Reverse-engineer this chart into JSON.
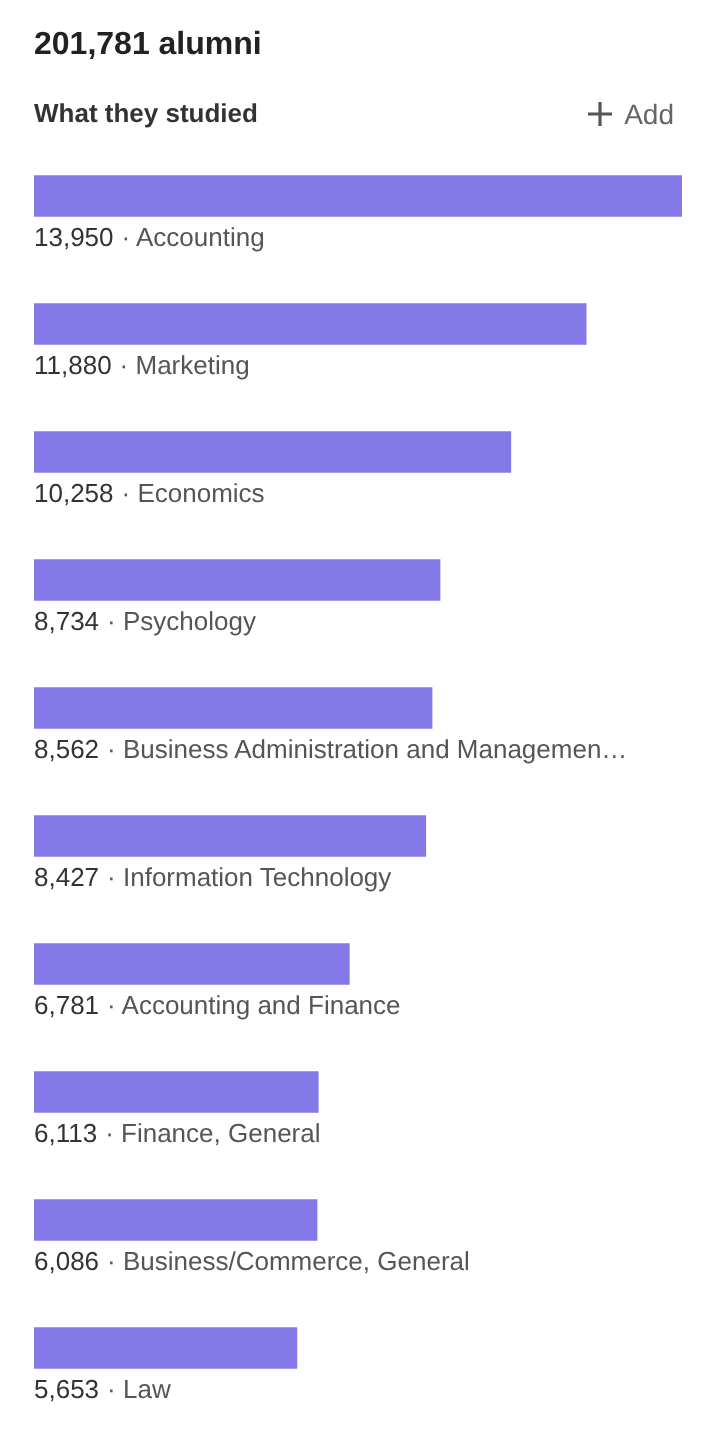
{
  "chart_data": {
    "type": "bar",
    "orientation": "horizontal",
    "title": "201,781 alumni",
    "subtitle": "What they studied",
    "categories": [
      "· Accounting",
      "· Marketing",
      "· Economics",
      "· Psychology",
      "· Business Administration and Managemen…",
      "· Information Technology",
      "· Accounting and Finance",
      "· Finance, General",
      "· Business/Commerce, General",
      "· Law"
    ],
    "values": [
      13950,
      11880,
      10258,
      8734,
      8562,
      8427,
      6781,
      6113,
      6086,
      5653
    ],
    "value_labels": [
      "13,950",
      "11,880",
      "10,258",
      "8,734",
      "8,562",
      "8,427",
      "6,781",
      "6,113",
      "6,086",
      "5,653"
    ],
    "color": "#8579e8",
    "annotations": [
      "Add"
    ]
  }
}
